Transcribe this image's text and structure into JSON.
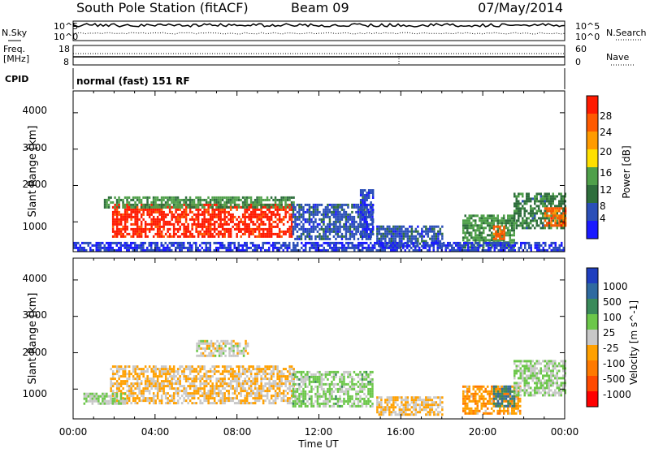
{
  "header": {
    "station": "South Pole Station (fitACF)",
    "beam": "Beam 09",
    "date": "07/May/2014"
  },
  "mode_label": "normal (fast) 151 RF",
  "noise_panel": {
    "left_label": "N.Sky",
    "right_label": "N.Search",
    "left_ticks": [
      "10^5",
      "10^0"
    ],
    "right_ticks": [
      "10^5",
      "10^0"
    ]
  },
  "freq_panel": {
    "left_label_1": "Freq.",
    "left_label_2": "[MHz]",
    "right_label": "Nave",
    "left_ticks": [
      "18",
      "8"
    ],
    "right_ticks": [
      "60",
      "0"
    ]
  },
  "cpid_label": "CPID",
  "time_axis": {
    "label": "Time UT",
    "ticks": [
      "00:00",
      "04:00",
      "08:00",
      "12:00",
      "16:00",
      "20:00",
      "00:00"
    ]
  },
  "colors": {
    "power_scale": [
      "#1a1aff",
      "#2b4fb8",
      "#2e6e3c",
      "#4fa04a",
      "#ffe000",
      "#ff9b00",
      "#ff5a00",
      "#ff1a00"
    ],
    "velocity_scale": [
      "#1f3fbf",
      "#2f6aa0",
      "#3a8a5a",
      "#6cc74a",
      "#c8c8c8",
      "#ffa000",
      "#ff7a00",
      "#ff4a00",
      "#ff0000"
    ]
  },
  "chart_data": [
    {
      "type": "heatmap",
      "panel": "power",
      "ylabel": "Slant Range [km]",
      "yticks": [
        "1000",
        "2000",
        "3000",
        "4000"
      ],
      "ylim": [
        180,
        4600
      ],
      "xlim": [
        0,
        24
      ],
      "colorbar_label": "Power [dB]",
      "colorbar_ticks": [
        "4",
        "8",
        "12",
        "16",
        "20",
        "24",
        "28"
      ],
      "colorbar_range": [
        0,
        30
      ],
      "regions": [
        {
          "x": [
            1.9,
            10.7
          ],
          "y": [
            600,
            1500
          ],
          "value": 28
        },
        {
          "x": [
            1.5,
            10.8
          ],
          "y": [
            1400,
            1700
          ],
          "value": 12
        },
        {
          "x": [
            10.7,
            14.6
          ],
          "y": [
            500,
            1500
          ],
          "value": 6
        },
        {
          "x": [
            14.0,
            14.6
          ],
          "y": [
            600,
            1900
          ],
          "value": 5
        },
        {
          "x": [
            14.8,
            18.0
          ],
          "y": [
            300,
            900
          ],
          "value": 6
        },
        {
          "x": [
            19.0,
            21.5
          ],
          "y": [
            300,
            1200
          ],
          "value": 12
        },
        {
          "x": [
            20.5,
            21.0
          ],
          "y": [
            500,
            900
          ],
          "value": 24
        },
        {
          "x": [
            21.5,
            24.0
          ],
          "y": [
            800,
            1800
          ],
          "value": 10
        },
        {
          "x": [
            23.0,
            24.0
          ],
          "y": [
            900,
            1400
          ],
          "value": 24
        },
        {
          "x": [
            0.0,
            24.0
          ],
          "y": [
            200,
            450
          ],
          "value": 4
        }
      ]
    },
    {
      "type": "heatmap",
      "panel": "velocity",
      "ylabel": "Slant Range [km]",
      "yticks": [
        "1000",
        "2000",
        "3000",
        "4000"
      ],
      "ylim": [
        180,
        4600
      ],
      "xlim": [
        0,
        24
      ],
      "colorbar_label": "Velocity [m s^-1]",
      "colorbar_ticks": [
        "1000",
        "500",
        "100",
        "25",
        "-25",
        "-100",
        "-500",
        "-1000"
      ],
      "colorbar_range": [
        -1200,
        1200
      ],
      "regions": [
        {
          "x": [
            1.8,
            10.8
          ],
          "y": [
            600,
            1650
          ],
          "value": -150
        },
        {
          "x": [
            6.0,
            8.5
          ],
          "y": [
            1900,
            2350
          ],
          "value": 0
        },
        {
          "x": [
            10.7,
            14.6
          ],
          "y": [
            500,
            1500
          ],
          "value": 200
        },
        {
          "x": [
            14.8,
            18.0
          ],
          "y": [
            300,
            800
          ],
          "value": -150
        },
        {
          "x": [
            19.0,
            21.8
          ],
          "y": [
            300,
            1100
          ],
          "value": -300
        },
        {
          "x": [
            20.5,
            21.5
          ],
          "y": [
            500,
            1100
          ],
          "value": 600
        },
        {
          "x": [
            21.5,
            24.0
          ],
          "y": [
            800,
            1800
          ],
          "value": 150
        },
        {
          "x": [
            0.5,
            2.5
          ],
          "y": [
            600,
            900
          ],
          "value": 150
        }
      ]
    }
  ]
}
